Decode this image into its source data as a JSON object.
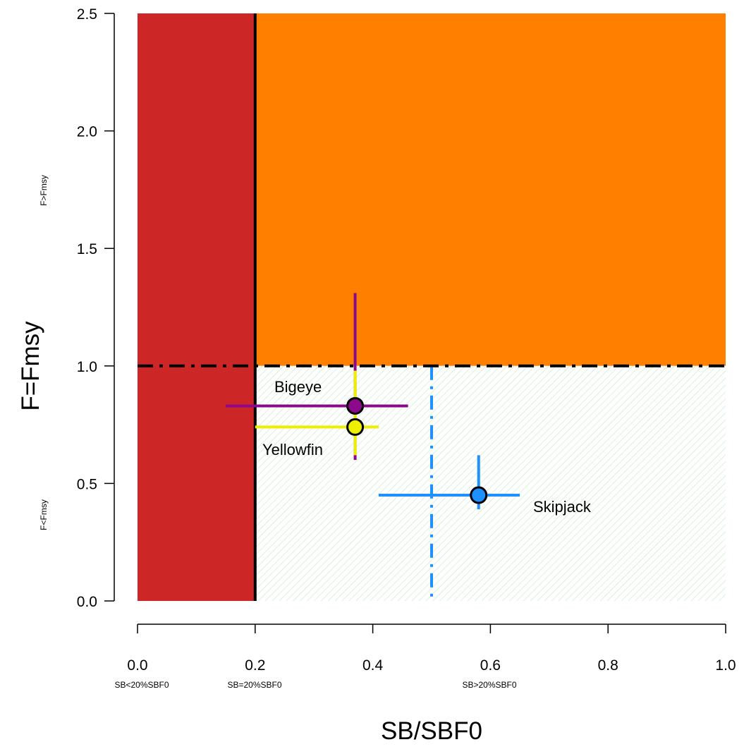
{
  "chart_data": {
    "type": "scatter",
    "xlabel": "SB/SBF0",
    "ylabel": "F=Fmsy",
    "xlim": [
      0.0,
      1.0
    ],
    "ylim": [
      0.0,
      2.5
    ],
    "x_ticks": [
      "0.0",
      "0.2",
      "0.4",
      "0.6",
      "0.8",
      "1.0"
    ],
    "y_ticks": [
      "0.0",
      "0.5",
      "1.0",
      "1.5",
      "2.0",
      "2.5"
    ],
    "x_zone_labels": {
      "below": "SB<20%SBF0",
      "at": "SB=20%SBF0",
      "above": "SB>20%SBF0"
    },
    "y_zone_labels": {
      "above": "F>Fmsy",
      "below": "F<Fmsy"
    },
    "regions": {
      "overfished_color": "#cc2626",
      "overfishing_color": "#ff7f00",
      "safe_hatch_color": "#c8ecc8"
    },
    "reference_lines": {
      "limit_reference_point_x": 0.2,
      "fmsy_y": 1.0,
      "target_x": 0.5,
      "target_color": "#1e90ff"
    },
    "series": [
      {
        "name": "Bigeye",
        "x": 0.37,
        "y": 0.83,
        "x_range": [
          0.15,
          0.46
        ],
        "y_range": [
          0.6,
          1.31
        ],
        "color": "#8b0a8b",
        "fill": "#8b0a8b"
      },
      {
        "name": "Yellowfin",
        "x": 0.37,
        "y": 0.74,
        "x_range": [
          0.2,
          0.41
        ],
        "y_range": [
          0.62,
          0.98
        ],
        "color": "#eeee00",
        "fill": "#eeee00"
      },
      {
        "name": "Skipjack",
        "x": 0.58,
        "y": 0.45,
        "x_range": [
          0.41,
          0.65
        ],
        "y_range": [
          0.39,
          0.62
        ],
        "color": "#1e90ff",
        "fill": "#1e90ff"
      }
    ]
  }
}
